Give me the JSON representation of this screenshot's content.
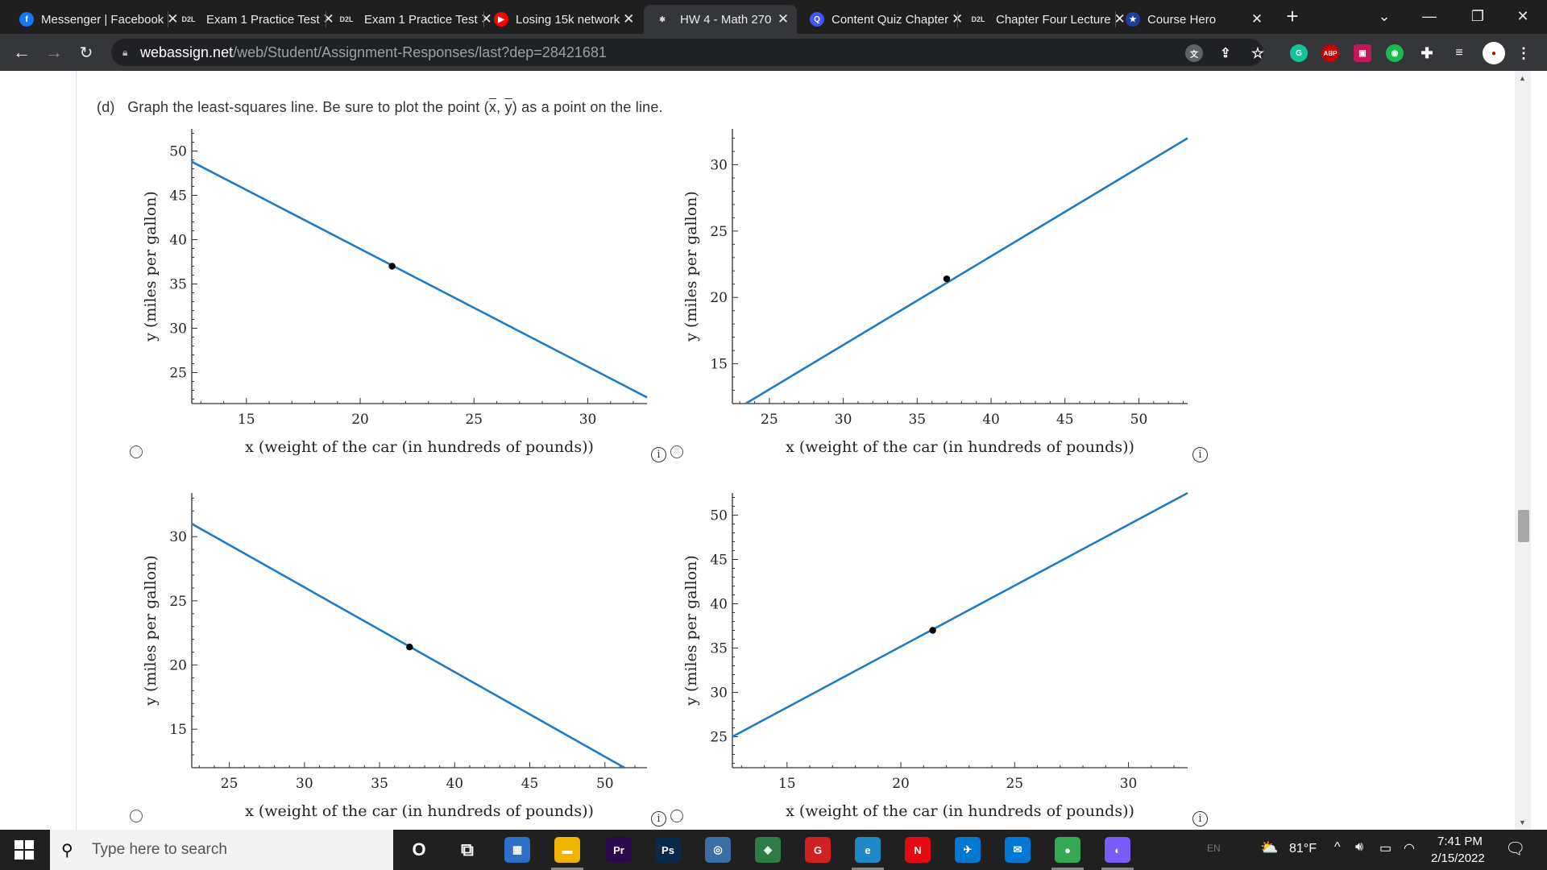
{
  "browser": {
    "tabs": [
      {
        "title": "Messenger | Facebook",
        "icon": "messenger-icon",
        "color": "#1877f2",
        "glyph": "f"
      },
      {
        "title": "Exam 1 Practice Test",
        "icon": "d2l-icon",
        "color": "",
        "glyph": "D2L"
      },
      {
        "title": "Exam 1 Practice Test",
        "icon": "d2l-icon",
        "color": "",
        "glyph": "D2L"
      },
      {
        "title": "Losing 15k network",
        "icon": "youtube-icon",
        "color": "#ff0000",
        "glyph": "▶"
      },
      {
        "title": "HW 4 - Math 270",
        "icon": "webassign-icon",
        "color": "",
        "glyph": "✱"
      },
      {
        "title": "Content Quiz Chapter",
        "icon": "quizlet-icon",
        "color": "#4255ff",
        "glyph": "Q"
      },
      {
        "title": "Chapter Four Lecture",
        "icon": "d2l-icon",
        "color": "",
        "glyph": "D2L"
      },
      {
        "title": "Course Hero",
        "icon": "coursehero-icon",
        "color": "#1a3f9c",
        "glyph": "★"
      }
    ],
    "new_tab": "+",
    "url_host": "webassign.net",
    "url_path": "/web/Student/Assignment-Responses/last?dep=28421681"
  },
  "question": {
    "label": "(d)",
    "text_before": "Graph the least-squares line. Be sure to plot the point (",
    "xbar": "x",
    "ybar": "y",
    "text_after": ") as a point on the line."
  },
  "chart_data": [
    {
      "type": "line",
      "xlabel": "x (weight of the car (in hundreds of pounds))",
      "ylabel": "y (miles per gallon)",
      "xlim": [
        12.6,
        32.6
      ],
      "ylim": [
        21.5,
        52.5
      ],
      "xticks": [
        15,
        20,
        25,
        30
      ],
      "yticks": [
        25,
        30,
        35,
        40,
        45,
        50
      ],
      "line": [
        [
          12.6,
          48.8
        ],
        [
          32.6,
          22.2
        ]
      ],
      "point": [
        21.4,
        37.0
      ]
    },
    {
      "type": "line",
      "xlabel": "x (weight of the car (in hundreds of pounds))",
      "ylabel": "y (miles per gallon)",
      "xlim": [
        22.5,
        53.3
      ],
      "ylim": [
        12.0,
        32.7
      ],
      "xticks": [
        25,
        30,
        35,
        40,
        45,
        50
      ],
      "yticks": [
        15,
        20,
        25,
        30
      ],
      "line": [
        [
          23.4,
          12.0
        ],
        [
          53.3,
          32.0
        ]
      ],
      "point": [
        37.0,
        21.4
      ]
    },
    {
      "type": "line",
      "xlabel": "x (weight of the car (in hundreds of pounds))",
      "ylabel": "y (miles per gallon)",
      "xlim": [
        22.5,
        52.8
      ],
      "ylim": [
        12.0,
        33.4
      ],
      "xticks": [
        25,
        30,
        35,
        40,
        45,
        50
      ],
      "yticks": [
        15,
        20,
        25,
        30
      ],
      "line": [
        [
          22.5,
          31.0
        ],
        [
          51.3,
          12.0
        ]
      ],
      "point": [
        37.0,
        21.4
      ]
    },
    {
      "type": "line",
      "xlabel": "x (weight of the car (in hundreds of pounds))",
      "ylabel": "y (miles per gallon)",
      "xlim": [
        12.6,
        32.6
      ],
      "ylim": [
        21.5,
        52.5
      ],
      "xticks": [
        15,
        20,
        25,
        30
      ],
      "yticks": [
        25,
        30,
        35,
        40,
        45,
        50
      ],
      "line": [
        [
          12.6,
          25.0
        ],
        [
          32.6,
          52.5
        ]
      ],
      "point": [
        21.4,
        37.0
      ]
    }
  ],
  "taskbar": {
    "search_placeholder": "Type here to search",
    "apps": [
      {
        "icon": "cortana-icon",
        "color": "",
        "glyph": "O"
      },
      {
        "icon": "task-view-icon",
        "color": "",
        "glyph": "⧉"
      },
      {
        "icon": "microsoft-store-icon",
        "color": "#2b6fc9",
        "glyph": "▦"
      },
      {
        "icon": "file-explorer-icon",
        "color": "#f0b400",
        "glyph": "▬"
      },
      {
        "icon": "premiere-pro-icon",
        "color": "#2a0a4a",
        "glyph": "Pr"
      },
      {
        "icon": "photoshop-icon",
        "color": "#0a2a4a",
        "glyph": "Ps"
      },
      {
        "icon": "app-icon",
        "color": "#3a6ea5",
        "glyph": "◎"
      },
      {
        "icon": "app-icon",
        "color": "#2f7d46",
        "glyph": "◈"
      },
      {
        "icon": "garena-icon",
        "color": "#d12020",
        "glyph": "G"
      },
      {
        "icon": "edge-icon",
        "color": "#1e88c8",
        "glyph": "e"
      },
      {
        "icon": "netflix-icon",
        "color": "#e50914",
        "glyph": "N"
      },
      {
        "icon": "app-icon",
        "color": "#0078d4",
        "glyph": "✈"
      },
      {
        "icon": "mail-icon",
        "color": "#0078d4",
        "glyph": "✉"
      },
      {
        "icon": "chrome-icon",
        "color": "#34a853",
        "glyph": "●"
      },
      {
        "icon": "messenger-icon",
        "color": "#7a5af8",
        "glyph": "◐"
      }
    ],
    "lang": "EN",
    "weather": "81°F",
    "time": "7:41 PM",
    "date": "2/15/2022"
  }
}
